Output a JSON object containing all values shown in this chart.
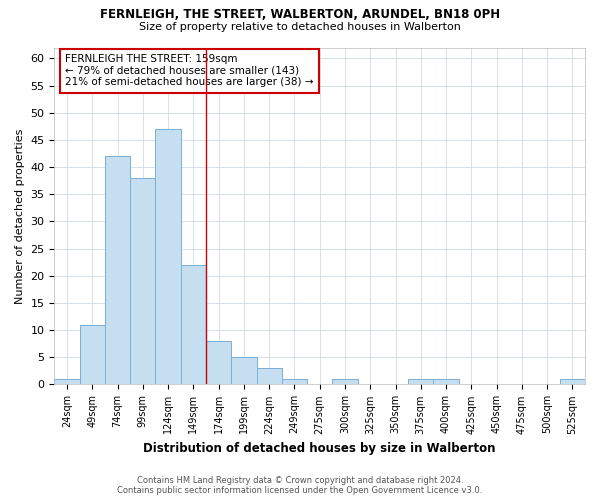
{
  "title": "FERNLEIGH, THE STREET, WALBERTON, ARUNDEL, BN18 0PH",
  "subtitle": "Size of property relative to detached houses in Walberton",
  "xlabel": "Distribution of detached houses by size in Walberton",
  "ylabel": "Number of detached properties",
  "bin_labels": [
    "24sqm",
    "49sqm",
    "74sqm",
    "99sqm",
    "124sqm",
    "149sqm",
    "174sqm",
    "199sqm",
    "224sqm",
    "249sqm",
    "275sqm",
    "300sqm",
    "325sqm",
    "350sqm",
    "375sqm",
    "400sqm",
    "425sqm",
    "450sqm",
    "475sqm",
    "500sqm",
    "525sqm"
  ],
  "bar_values": [
    1,
    11,
    42,
    38,
    47,
    22,
    8,
    5,
    3,
    1,
    0,
    1,
    0,
    0,
    1,
    1,
    0,
    0,
    0,
    0,
    1
  ],
  "bar_color": "#c5dff0",
  "bar_edgecolor": "#7bafd4",
  "vline_x": 5.5,
  "vline_color": "#cc0000",
  "ylim": [
    0,
    62
  ],
  "yticks": [
    0,
    5,
    10,
    15,
    20,
    25,
    30,
    35,
    40,
    45,
    50,
    55,
    60
  ],
  "annotation_line1": "FERNLEIGH THE STREET: 159sqm",
  "annotation_line2": "← 79% of detached houses are smaller (143)",
  "annotation_line3": "21% of semi-detached houses are larger (38) →",
  "annotation_box_color": "#cc0000",
  "footer_line1": "Contains HM Land Registry data © Crown copyright and database right 2024.",
  "footer_line2": "Contains public sector information licensed under the Open Government Licence v3.0.",
  "background_color": "#ffffff",
  "grid_color": "#d0dce8"
}
